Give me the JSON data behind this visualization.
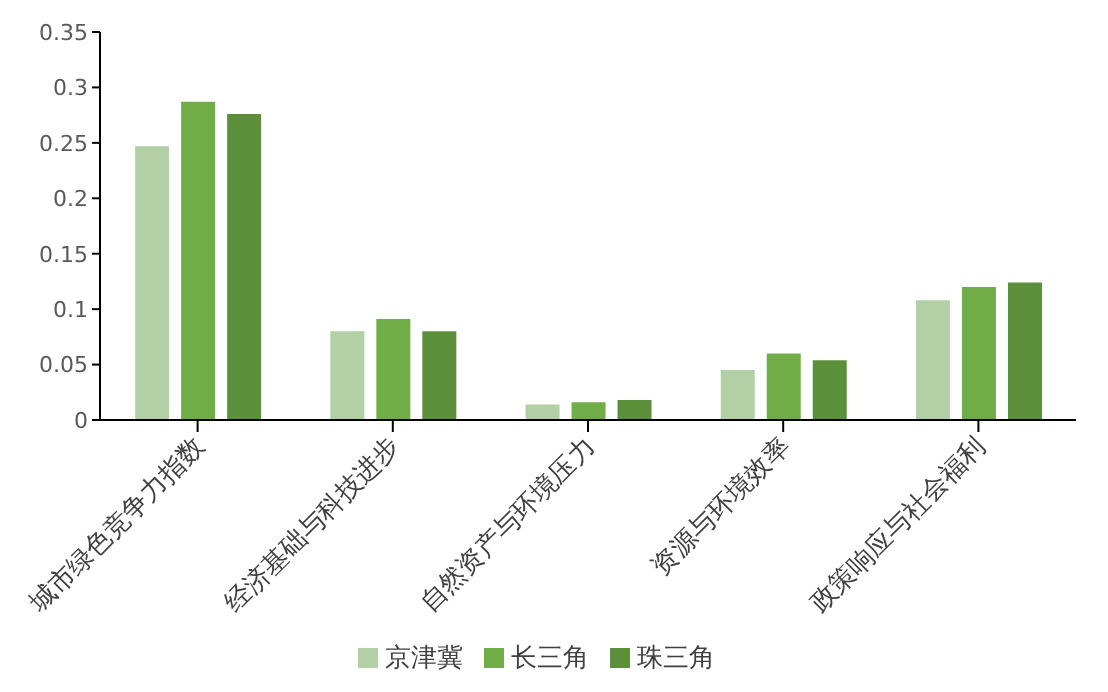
{
  "chart_data": {
    "type": "bar",
    "categories": [
      "城市绿色竞争力指数",
      "经济基础与科技进步",
      "自然资产与环境压力",
      "资源与环境效率",
      "政策响应与社会福利"
    ],
    "series": [
      {
        "name": "京津冀",
        "color": "#b3cfa5",
        "values": [
          0.247,
          0.08,
          0.014,
          0.045,
          0.108
        ]
      },
      {
        "name": "长三角",
        "color": "#70ad47",
        "values": [
          0.287,
          0.091,
          0.016,
          0.06,
          0.12
        ]
      },
      {
        "name": "珠三角",
        "color": "#5b8f3a",
        "values": [
          0.276,
          0.08,
          0.018,
          0.054,
          0.124
        ]
      }
    ],
    "ylim": [
      0,
      0.35
    ],
    "yticks": [
      0,
      0.05,
      0.1,
      0.15,
      0.2,
      0.25,
      0.3,
      0.35
    ],
    "grid": false,
    "legend": "bottom"
  }
}
